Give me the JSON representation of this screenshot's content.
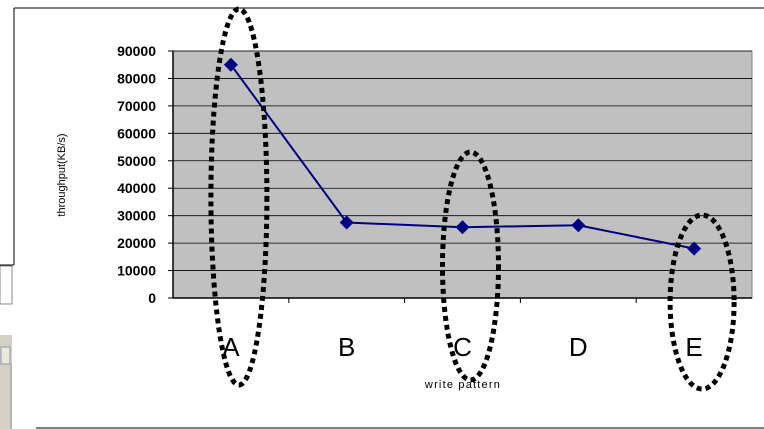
{
  "chart_data": {
    "type": "line",
    "categories": [
      "A",
      "B",
      "C",
      "D",
      "E"
    ],
    "series": [
      {
        "values": [
          85000,
          27500,
          25800,
          26500,
          18000
        ]
      }
    ],
    "title": "",
    "xlabel": "write pattern",
    "ylabel": "throughput(KB/s)",
    "ylim": [
      0,
      90000
    ],
    "yticks": [
      "0",
      "10000",
      "20000",
      "30000",
      "40000",
      "50000",
      "60000",
      "70000",
      "80000",
      "90000"
    ],
    "grid": true,
    "legend": "none",
    "highlighted_categories": [
      "A",
      "C",
      "E"
    ],
    "colors": {
      "plot_background": "#c0c0c0",
      "line": "#000080",
      "marker": "#000080",
      "highlight_outline": "#000000"
    }
  }
}
